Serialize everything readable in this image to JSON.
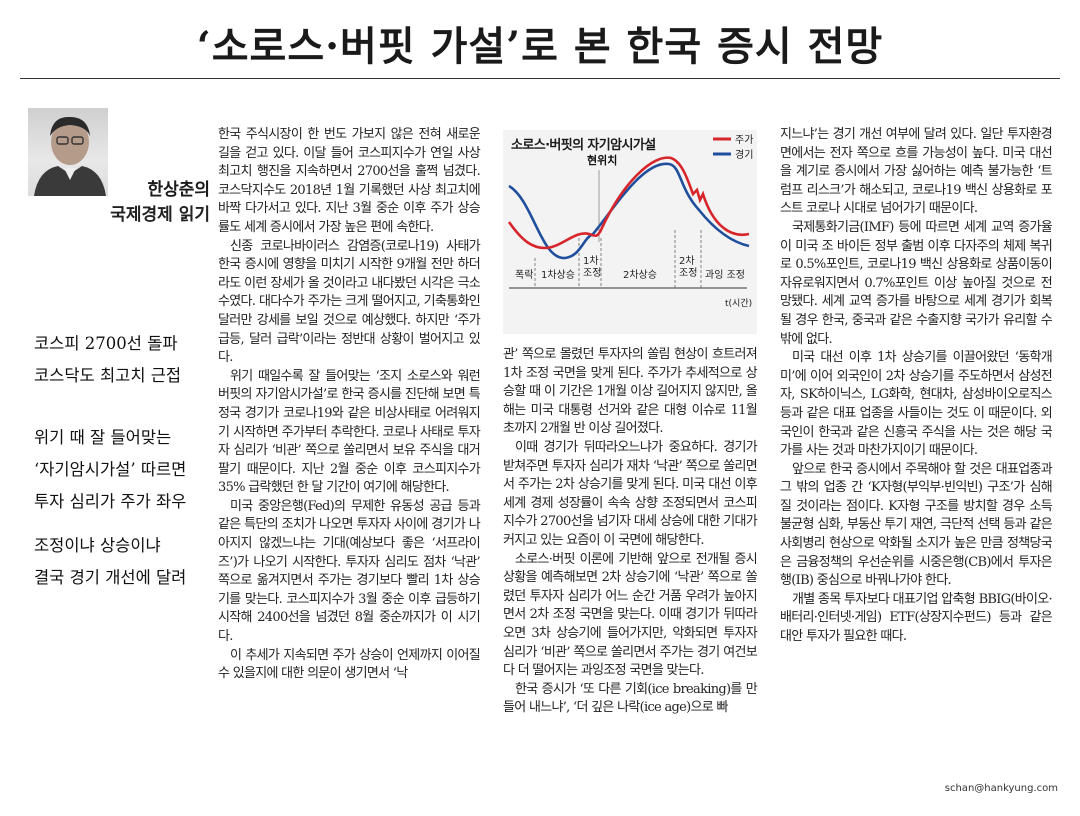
{
  "headline": "‘소로스·버핏 가설’로 본 한국 증시 전망",
  "columnist": {
    "name": "한상춘의",
    "column": "국제경제 읽기"
  },
  "subheads": [
    "코스피 2700선 돌파\n코스닥도 최고치 근접",
    "위기 때 잘 들어맞는\n‘자기암시가설’ 따르면\n투자 심리가 주가 좌우",
    "조정이냐 상승이냐\n결국 경기 개선에 달려"
  ],
  "col1": [
    "한국 주식시장이 한 번도 가보지 않은 전혀 새로운 길을 걷고 있다. 이달 들어 코스피지수가 연일 사상 최고치 행진을 지속하면서 2700선을 훌쩍 넘겼다. 코스닥지수도 2018년 1월 기록했던 사상 최고치에 바짝 다가서고 있다. 지난 3월 중순 이후 주가 상승률도 세계 증시에서 가장 높은 편에 속한다.",
    "신종 코로나바이러스 감염증(코로나19) 사태가 한국 증시에 영향을 미치기 시작한 9개월 전만 하더라도 이런 장세가 올 것이라고 내다봤던 시각은 극소수였다. 대다수가 주가는 크게 떨어지고, 기축통화인 달러만 강세를 보일 것으로 예상했다. 하지만 ‘주가 급등, 달러 급락’이라는 정반대 상황이 벌어지고 있다.",
    "위기 때일수록 잘 들어맞는 ‘조지 소로스와 워런 버핏의 자기암시가설’로 한국 증시를 진단해 보면 특정국 경기가 코로나19와 같은 비상사태로 어려워지기 시작하면 주가부터 추락한다. 코로나 사태로 투자자 심리가 ‘비관’ 쪽으로 쏠리면서 보유 주식을 대거 팔기 때문이다. 지난 2월 중순 이후 코스피지수가 35% 급락했던 한 달 기간이 여기에 해당한다.",
    "미국 중앙은행(Fed)의 무제한 유동성 공급 등과 같은 특단의 조치가 나오면 투자자 사이에 경기가 나아지지 않겠느냐는 기대(예상보다 좋은 ‘서프라이즈’)가 나오기 시작한다. 투자자 심리도 점차 ‘낙관’ 쪽으로 옮겨지면서 주가는 경기보다 빨리 1차 상승기를 맞는다. 코스피지수가 3월 중순 이후 급등하기 시작해 2400선을 넘겼던 8월 중순까지가 이 시기다.",
    "이 추세가 지속되면 주가 상승이 언제까지 이어질 수 있을지에 대한 의문이 생기면서 ‘낙"
  ],
  "chart": {
    "title": "소로스·버핏의 자기암시가설",
    "legend": [
      {
        "label": "주가",
        "color": "#d6262b"
      },
      {
        "label": "경기",
        "color": "#1f4e9c"
      }
    ],
    "marker": "현위치",
    "phases": [
      "폭락",
      "1차상승",
      "1차\n조정",
      "2차상승",
      "2차\n조정",
      "과잉\n조정"
    ],
    "xlabel": "t(시간)"
  },
  "col3": [
    "관’ 쪽으로 몰렸던 투자자의 쏠림 현상이 흐트러져 1차 조정 국면을 맞게 된다. 주가가 추세적으로 상승할 때 이 기간은 1개월 이상 길어지지 않지만, 올해는 미국 대통령 선거와 같은 대형 이슈로 11월 초까지 2개월 반 이상 길어졌다.",
    "이때 경기가 뒤따라오느냐가 중요하다. 경기가 받쳐주면 투자자 심리가 재차 ‘낙관’ 쪽으로 쏠리면서 주가는 2차 상승기를 맞게 된다. 미국 대선 이후 세계 경제 성장률이 속속 상향 조정되면서 코스피지수가 2700선을 넘기자 대세 상승에 대한 기대가 커지고 있는 요즘이 이 국면에 해당한다.",
    "소로스·버핏 이론에 기반해 앞으로 전개될 증시 상황을 예측해보면 2차 상승기에 ‘낙관’ 쪽으로 쏠렸던 투자자 심리가 어느 순간 거품 우려가 높아지면서 2차 조정 국면을 맞는다. 이때 경기가 뒤따라오면 3차 상승기에 들어가지만, 악화되면 투자자 심리가 ‘비관’ 쪽으로 쏠리면서 주가는 경기 여건보다 더 떨어지는 과잉조정 국면을 맞는다.",
    "한국 증시가 ‘또 다른 기회(ice breaking)를 만들어 내느냐’, ‘더 깊은 나락(ice age)으로 빠"
  ],
  "col4": [
    "지느냐’는 경기 개선 여부에 달려 있다. 일단 투자환경 면에서는 전자 쪽으로 흐를 가능성이 높다. 미국 대선을 계기로 증시에서 가장 싫어하는 예측 불가능한 ‘트럼프 리스크’가 해소되고, 코로나19 백신 상용화로 포스트 코로나 시대로 넘어가기 때문이다.",
    "국제통화기금(IMF) 등에 따르면 세계 교역 증가율이 미국 조 바이든 정부 출범 이후 다자주의 체제 복귀로 0.5%포인트, 코로나19 백신 상용화로 상품이동이 자유로워지면서 0.7%포인트 이상 높아질 것으로 전망됐다. 세계 교역 증가를 바탕으로 세계 경기가 회복될 경우 한국, 중국과 같은 수출지향 국가가 유리할 수밖에 없다.",
    "미국 대선 이후 1차 상승기를 이끌어왔던 ‘동학개미’에 이어 외국인이 2차 상승기를 주도하면서 삼성전자, SK하이닉스, LG화학, 현대차, 삼성바이오로직스 등과 같은 대표 업종을 사들이는 것도 이 때문이다. 외국인이 한국과 같은 신흥국 주식을 사는 것은 해당 국가를 사는 것과 마찬가지이기 때문이다.",
    "앞으로 한국 증시에서 주목해야 할 것은 대표업종과 그 밖의 업종 간 ‘K자형(부익부·빈익빈) 구조’가 심해질 것이라는 점이다. K자형 구조를 방치할 경우 소득 불균형 심화, 부동산 투기 재연, 극단적 선택 등과 같은 사회병리 현상으로 악화될 소지가 높은 만큼 정책당국은 금융정책의 우선순위를 시중은행(CB)에서 투자은행(IB) 중심으로 바꿔나가야 한다.",
    "개별 종목 투자보다 대표기업 압축형 BBIG(바이오·배터리·인터넷·게임) ETF(상장지수펀드) 등과 같은 대안 투자가 필요한 때다."
  ],
  "email": "schan@hankyung.com"
}
